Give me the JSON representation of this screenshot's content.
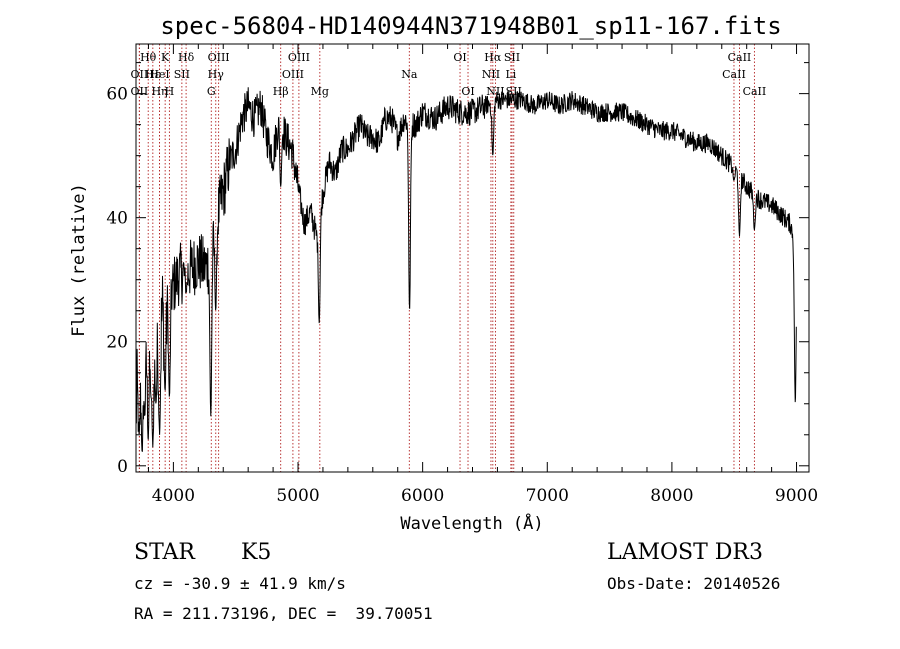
{
  "chart_data": {
    "type": "line",
    "title": "spec-56804-HD140944N371948B01_sp11-167.fits",
    "xlabel": "Wavelength (Å)",
    "ylabel": "Flux (relative)",
    "xlim": [
      3700,
      9100
    ],
    "ylim": [
      -1,
      68
    ],
    "xticks": [
      4000,
      5000,
      6000,
      7000,
      8000,
      9000
    ],
    "xtick_labels": [
      "4000",
      "5000",
      "6000",
      "7000",
      "8000",
      "9000"
    ],
    "yticks": [
      0,
      20,
      40,
      60
    ],
    "ytick_labels": [
      "0",
      "20",
      "40",
      "60"
    ],
    "grid": false,
    "legend": "none",
    "line_color": "#000000",
    "marker_color": "#b22222",
    "spectrum_x": [
      3700,
      3750,
      3800,
      3850,
      3900,
      3950,
      4000,
      4050,
      4100,
      4150,
      4200,
      4250,
      4300,
      4350,
      4400,
      4450,
      4500,
      4550,
      4600,
      4650,
      4700,
      4750,
      4800,
      4850,
      4900,
      4950,
      5000,
      5050,
      5100,
      5150,
      5200,
      5250,
      5300,
      5350,
      5400,
      5450,
      5500,
      5550,
      5600,
      5650,
      5700,
      5750,
      5800,
      5850,
      5900,
      5950,
      6000,
      6100,
      6200,
      6300,
      6400,
      6500,
      6600,
      6700,
      6800,
      6900,
      7000,
      7100,
      7200,
      7300,
      7400,
      7500,
      7600,
      7700,
      7800,
      7900,
      8000,
      8100,
      8200,
      8300,
      8400,
      8500,
      8600,
      8700,
      8800,
      8900,
      8950,
      9000
    ],
    "spectrum_y": [
      10,
      16,
      22,
      20,
      24,
      27,
      29,
      31,
      31,
      32,
      33,
      32,
      33,
      40,
      44,
      49,
      51,
      56,
      58,
      56,
      58,
      53,
      50,
      56,
      53,
      51,
      45,
      39,
      41,
      37,
      44,
      49,
      47,
      51,
      51,
      53,
      55,
      53,
      53,
      52,
      56,
      56,
      53,
      56,
      55,
      55,
      57,
      56,
      58,
      57,
      57,
      58,
      59,
      59,
      59,
      58,
      59,
      58,
      59,
      58,
      57,
      57,
      57,
      56,
      55,
      54,
      54,
      53,
      52,
      52,
      50,
      48,
      45,
      43,
      42,
      40,
      39,
      35
    ],
    "absorption_dips": [
      {
        "x": 3725,
        "y": 5
      },
      {
        "x": 3750,
        "y": 2
      },
      {
        "x": 3770,
        "y": 8
      },
      {
        "x": 3798,
        "y": 4
      },
      {
        "x": 3820,
        "y": 12
      },
      {
        "x": 3835,
        "y": 3
      },
      {
        "x": 3860,
        "y": 10
      },
      {
        "x": 3889,
        "y": 5
      },
      {
        "x": 3933,
        "y": 12
      },
      {
        "x": 3968,
        "y": 11
      },
      {
        "x": 4102,
        "y": 28
      },
      {
        "x": 4300,
        "y": 8
      },
      {
        "x": 4340,
        "y": 25
      },
      {
        "x": 4861,
        "y": 45
      },
      {
        "x": 5170,
        "y": 23
      },
      {
        "x": 5895,
        "y": 25
      },
      {
        "x": 6563,
        "y": 50
      },
      {
        "x": 8498,
        "y": 46
      },
      {
        "x": 8542,
        "y": 37
      },
      {
        "x": 8662,
        "y": 38
      },
      {
        "x": 8990,
        "y": 10
      }
    ],
    "lines": [
      {
        "label": "Hθ",
        "x": 3798,
        "row": 1
      },
      {
        "label": "OII",
        "x": 3727,
        "row": 2
      },
      {
        "label": "OII",
        "x": 3727,
        "row": 3
      },
      {
        "label": "Hε",
        "x": 3835,
        "row": 2
      },
      {
        "label": "Hη",
        "x": 3889,
        "row": 3
      },
      {
        "label": "K",
        "x": 3934,
        "row": 1
      },
      {
        "label": "HeI",
        "x": 3889,
        "row": 2
      },
      {
        "label": "H",
        "x": 3968,
        "row": 3
      },
      {
        "label": "Hδ",
        "x": 4102,
        "row": 1
      },
      {
        "label": "SII",
        "x": 4068,
        "row": 2
      },
      {
        "label": "OIII",
        "x": 4363,
        "row": 1
      },
      {
        "label": "Hγ",
        "x": 4340,
        "row": 2
      },
      {
        "label": "G",
        "x": 4304,
        "row": 3
      },
      {
        "label": "Hβ",
        "x": 4861,
        "row": 3
      },
      {
        "label": "OIII",
        "x": 5007,
        "row": 1
      },
      {
        "label": "OIII",
        "x": 4959,
        "row": 2
      },
      {
        "label": "Mg",
        "x": 5175,
        "row": 3
      },
      {
        "label": "Na",
        "x": 5893,
        "row": 2
      },
      {
        "label": "OI",
        "x": 6300,
        "row": 1
      },
      {
        "label": "OI",
        "x": 6364,
        "row": 3
      },
      {
        "label": "Hα",
        "x": 6563,
        "row": 1
      },
      {
        "label": "NII",
        "x": 6548,
        "row": 2
      },
      {
        "label": "NII",
        "x": 6584,
        "row": 3
      },
      {
        "label": "SII",
        "x": 6717,
        "row": 1
      },
      {
        "label": "Li",
        "x": 6708,
        "row": 2
      },
      {
        "label": "SII",
        "x": 6731,
        "row": 3
      },
      {
        "label": "CaII",
        "x": 8542,
        "row": 1
      },
      {
        "label": "CaII",
        "x": 8498,
        "row": 2
      },
      {
        "label": "CaII",
        "x": 8662,
        "row": 3
      }
    ]
  },
  "info": {
    "class": "STAR",
    "subclass": "K5",
    "survey": "LAMOST DR3",
    "redshift": "cz = -30.9 ± 41.9 km/s",
    "obs_date": "Obs-Date: 20140526",
    "coords": "RA = 211.73196, DEC =  39.70051"
  }
}
